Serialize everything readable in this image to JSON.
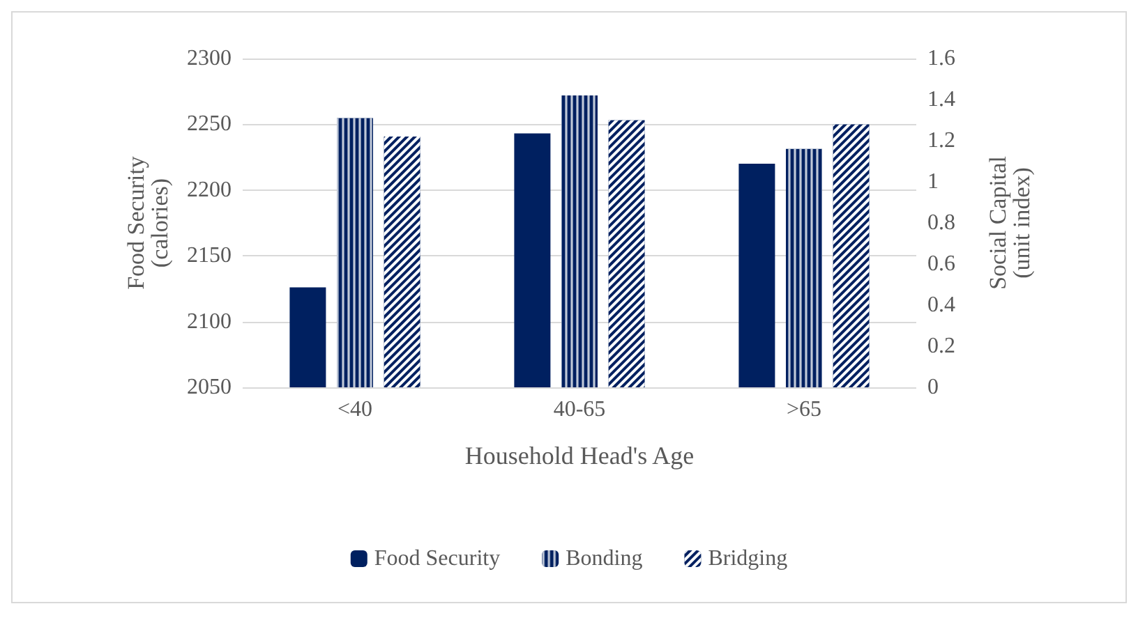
{
  "chart_data": {
    "type": "bar",
    "categories": [
      "<40",
      "40-65",
      ">65"
    ],
    "xlabel": "Household Head's Age",
    "ylabel": "Food Security\n(calories)",
    "y2label": "Social Capital\n(unit index)",
    "series": [
      {
        "name": "Food Security",
        "color": "#002060",
        "values": [
          2126,
          2243,
          2220
        ]
      },
      {
        "name": "Bonding",
        "color": "#002060",
        "values": [
          1.31,
          1.42,
          1.16
        ],
        "axis": "y2"
      },
      {
        "name": "Bridging",
        "color": "#002060",
        "values": [
          1.22,
          1.3,
          1.28
        ],
        "axis": "y2"
      }
    ],
    "ylim": [
      2050,
      2300
    ],
    "yticks": [
      2050,
      2100,
      2150,
      2200,
      2250,
      2300
    ],
    "y2lim": [
      0,
      1.6
    ],
    "y2ticks": [
      0,
      0.2,
      0.4,
      0.6,
      0.8,
      1,
      1.2,
      1.4,
      1.6
    ],
    "grid": "y",
    "legend": "bottom"
  }
}
